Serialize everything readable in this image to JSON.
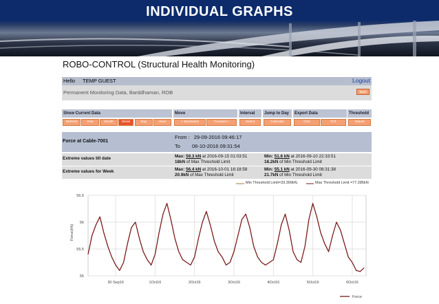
{
  "banner": {
    "title": "INDIVIDUAL GRAPHS"
  },
  "app": {
    "title": "ROBO-CONTROL  (Structural Health Monitoring)"
  },
  "header": {
    "hello": "Hello",
    "user": "TEMP GUEST",
    "logout": "Logout"
  },
  "location": {
    "text": "Permanent Monitoring Data, Barddhaman, ROB",
    "back_label": "Back"
  },
  "controls": {
    "headers": {
      "show_current": "Show Current Data",
      "move": "Move",
      "interval": "Interval",
      "jump": "Jump to Day",
      "export": "Export Data",
      "threshold": "Threshold"
    },
    "buttons": {
      "refresh": "Refresh",
      "year": "Year",
      "month": "Month",
      "week": "Week",
      "day": "Day",
      "hour": "Hour",
      "backward": "« Backward",
      "forward": "Forward »",
      "select": "Select",
      "calendar": "Calendar",
      "csv": "CSV",
      "txt": "TXT",
      "values": "Values"
    }
  },
  "force": {
    "title": "Force at Cable-7001",
    "from_label": "From :",
    "from_value": "29-09-2016 09:46:17",
    "to_label": "To",
    "to_value": "06-10-2016 09:31:54"
  },
  "extremes": {
    "till_date": {
      "label": "Extreme values till date",
      "max_prefix": "Max:",
      "max_value": "59.3 kN",
      "max_at": "at 2016-09-15 01:03:51",
      "max_pct": "18kN",
      "max_pct_text": "of Max Threshold Limit",
      "min_prefix": "Min:",
      "min_value": "51.6 kN",
      "min_at": "at 2016-09-10 22:33:51",
      "min_pct": "18.2kN",
      "min_pct_text": "of Min Threshold Limit"
    },
    "week": {
      "label": "Extreme values for Week",
      "max_prefix": "Max:",
      "max_value": "56.4 kN",
      "max_at": "at 2016-10-01 16:18:58",
      "max_pct": "20.9kN",
      "max_pct_text": "of Max Threshold Limit",
      "min_prefix": "Min:",
      "min_value": "55.1 kN",
      "min_at": "at 2016-09-30 08:31:38",
      "min_pct": "21.7kN",
      "min_pct_text": "of Min Threshold Limit"
    }
  },
  "legend_top": {
    "min": "Min Threshold Limit=33.399kN,",
    "max": "Max Threshold Limit =77.285kN"
  },
  "colors": {
    "series": "#7a1a1a",
    "min_threshold": "#a07a40",
    "max_threshold": "#7a1a1a"
  },
  "chart_data": {
    "type": "line",
    "ylabel": "Force(kN)",
    "y_ticks": [
      "56.5",
      "56",
      "55.5",
      "55"
    ],
    "ylim": [
      55,
      56.5
    ],
    "x_ticks": [
      "30 Sep16",
      "1Oct16",
      "2Oct16",
      "3Oct16",
      "4Oct16",
      "5Oct16",
      "6Oct16"
    ],
    "xlim_days": [
      -0.7,
      6.35
    ],
    "grid": true,
    "series": [
      {
        "name": "Force",
        "x_days": [
          -0.7,
          -0.6,
          -0.5,
          -0.4,
          -0.3,
          -0.2,
          -0.1,
          0,
          0.1,
          0.2,
          0.3,
          0.4,
          0.5,
          0.6,
          0.7,
          0.8,
          0.9,
          1,
          1.1,
          1.2,
          1.3,
          1.4,
          1.5,
          1.6,
          1.7,
          1.8,
          1.9,
          2,
          2.1,
          2.2,
          2.3,
          2.4,
          2.5,
          2.6,
          2.7,
          2.8,
          2.9,
          3,
          3.1,
          3.2,
          3.3,
          3.4,
          3.5,
          3.6,
          3.7,
          3.8,
          3.9,
          4,
          4.1,
          4.2,
          4.3,
          4.4,
          4.5,
          4.6,
          4.7,
          4.8,
          4.9,
          5,
          5.1,
          5.2,
          5.3,
          5.4,
          5.5,
          5.6,
          5.7,
          5.8,
          5.9,
          6,
          6.1,
          6.2,
          6.3
        ],
        "values": [
          55.4,
          55.75,
          55.95,
          56.1,
          55.8,
          55.55,
          55.35,
          55.2,
          55.1,
          55.25,
          55.6,
          55.9,
          56.0,
          55.7,
          55.45,
          55.3,
          55.2,
          55.4,
          55.8,
          56.15,
          56.35,
          56.05,
          55.7,
          55.45,
          55.3,
          55.25,
          55.2,
          55.35,
          55.7,
          56.0,
          56.2,
          55.95,
          55.65,
          55.45,
          55.35,
          55.2,
          55.25,
          55.45,
          55.75,
          56.05,
          56.15,
          55.9,
          55.55,
          55.35,
          55.25,
          55.2,
          55.25,
          55.3,
          55.6,
          55.95,
          56.15,
          55.85,
          55.45,
          55.3,
          55.25,
          55.55,
          56.05,
          56.35,
          56.1,
          55.8,
          55.6,
          55.45,
          55.75,
          56.0,
          55.85,
          55.6,
          55.35,
          55.25,
          55.1,
          55.08,
          55.15
        ]
      }
    ]
  },
  "legend_bottom": {
    "force": "Force"
  }
}
